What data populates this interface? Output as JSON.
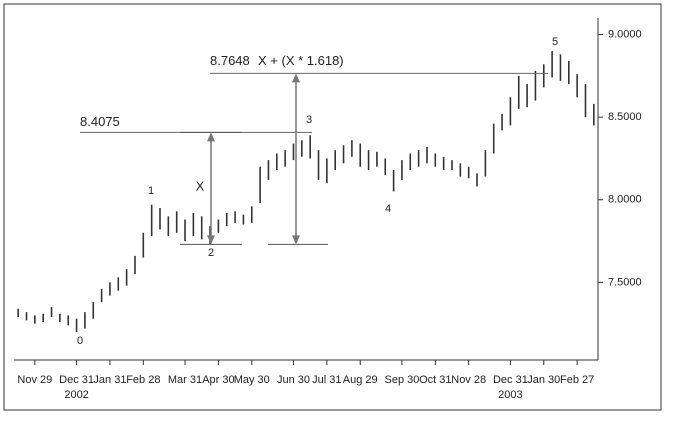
{
  "chart_data": {
    "type": "hl_bar",
    "color": "#333333",
    "categories": [
      null,
      null,
      "Nov 29",
      null,
      null,
      null,
      null,
      "Dec 31",
      null,
      null,
      null,
      "Jan 31",
      null,
      null,
      null,
      "Feb 28",
      null,
      null,
      null,
      null,
      "Mar 31",
      null,
      null,
      null,
      "Apr 30",
      null,
      null,
      null,
      "May 30",
      null,
      null,
      null,
      null,
      "Jun 30",
      null,
      null,
      null,
      "Jul 31",
      null,
      null,
      null,
      "Aug 29",
      null,
      null,
      null,
      null,
      "Sep 30",
      null,
      null,
      null,
      "Oct 31",
      null,
      null,
      null,
      "Nov 28",
      null,
      null,
      null,
      null,
      "Dec 31",
      null,
      null,
      null,
      "Jan 30",
      null,
      null,
      null,
      "Feb 27",
      null,
      null
    ],
    "category_years": [
      null,
      null,
      null,
      null,
      null,
      null,
      null,
      "2002",
      null,
      null,
      null,
      null,
      null,
      null,
      null,
      null,
      null,
      null,
      null,
      null,
      null,
      null,
      null,
      null,
      null,
      null,
      null,
      null,
      null,
      null,
      null,
      null,
      null,
      null,
      null,
      null,
      null,
      null,
      null,
      null,
      null,
      null,
      null,
      null,
      null,
      null,
      null,
      null,
      null,
      null,
      null,
      null,
      null,
      null,
      null,
      null,
      null,
      null,
      null,
      "2003",
      null,
      null,
      null,
      null,
      null,
      null,
      null,
      null,
      null,
      null
    ],
    "high": [
      7.34,
      7.32,
      7.3,
      7.31,
      7.35,
      7.31,
      7.3,
      7.28,
      7.32,
      7.38,
      7.46,
      7.5,
      7.53,
      7.58,
      7.66,
      7.8,
      7.97,
      7.95,
      7.9,
      7.93,
      7.88,
      7.92,
      7.9,
      7.84,
      7.88,
      7.92,
      7.93,
      7.91,
      7.96,
      8.2,
      8.24,
      8.28,
      8.3,
      8.34,
      8.36,
      8.39,
      8.3,
      8.25,
      8.3,
      8.33,
      8.36,
      8.34,
      8.3,
      8.29,
      8.25,
      8.18,
      8.24,
      8.28,
      8.3,
      8.32,
      8.28,
      8.26,
      8.24,
      8.22,
      8.2,
      8.16,
      8.3,
      8.46,
      8.52,
      8.62,
      8.75,
      8.7,
      8.78,
      8.82,
      8.9,
      8.88,
      8.84,
      8.76,
      8.7,
      8.58
    ],
    "low": [
      7.29,
      7.27,
      7.25,
      7.26,
      7.29,
      7.26,
      7.24,
      7.2,
      7.22,
      7.28,
      7.38,
      7.42,
      7.45,
      7.48,
      7.55,
      7.65,
      7.78,
      7.82,
      7.78,
      7.8,
      7.75,
      7.78,
      7.76,
      7.73,
      7.8,
      7.84,
      7.86,
      7.85,
      7.86,
      7.98,
      8.12,
      8.18,
      8.2,
      8.24,
      8.26,
      8.25,
      8.12,
      8.1,
      8.18,
      8.22,
      8.26,
      8.2,
      8.18,
      8.2,
      8.15,
      8.05,
      8.12,
      8.18,
      8.2,
      8.22,
      8.2,
      8.18,
      8.18,
      8.14,
      8.13,
      8.08,
      8.14,
      8.28,
      8.42,
      8.45,
      8.55,
      8.56,
      8.6,
      8.68,
      8.74,
      8.72,
      8.7,
      8.62,
      8.5,
      8.45
    ],
    "ylim": [
      7.03,
      9.1
    ],
    "yticks": [
      {
        "value": 7.5,
        "label": "7.5000"
      },
      {
        "value": 8,
        "label": "8.0000"
      },
      {
        "value": 8.5,
        "label": "8.5000"
      },
      {
        "value": 9,
        "label": "9.0000"
      }
    ],
    "levels": [
      8.4075,
      8.7648
    ],
    "projection_label": "X + (X * 1.618)",
    "move_label": "X",
    "wave_labels": [
      "0",
      "1",
      "2",
      "3",
      "4",
      "5"
    ]
  }
}
